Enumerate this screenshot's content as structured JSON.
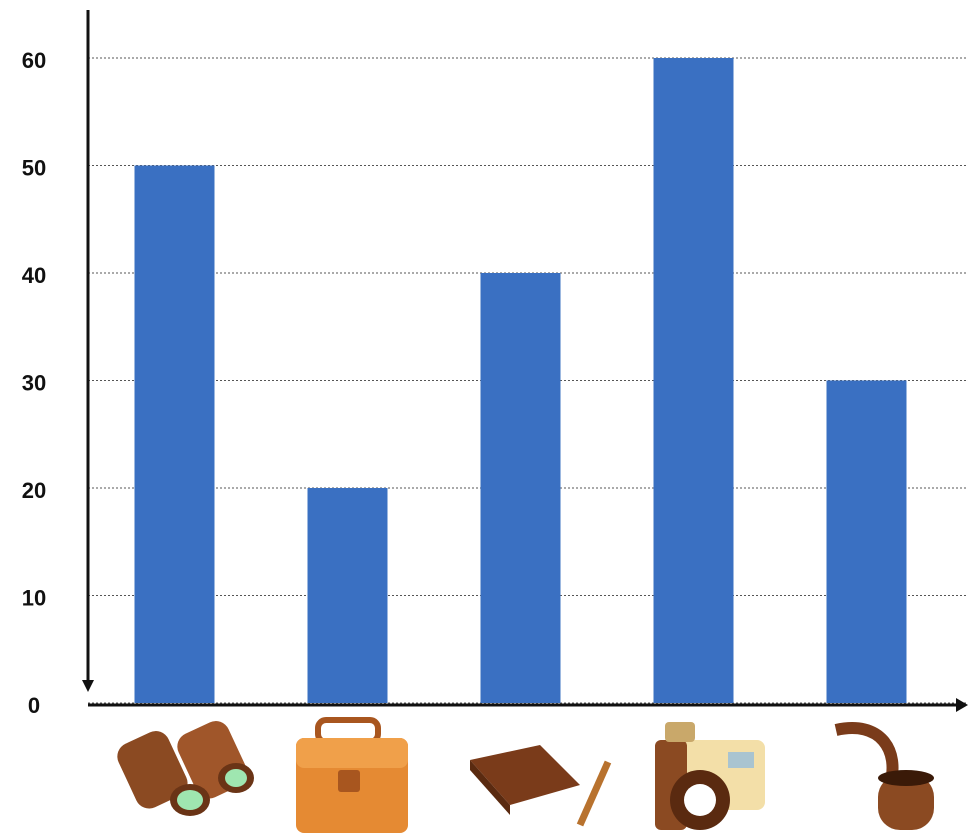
{
  "chart_data": {
    "type": "bar",
    "categories": [
      null,
      null,
      null,
      null,
      null
    ],
    "values": [
      50,
      20,
      40,
      60,
      30
    ],
    "color": "#3a70c2",
    "ylim": [
      0,
      64
    ],
    "yticks": [
      0,
      10,
      20,
      30,
      40,
      50,
      60
    ],
    "grid": true
  }
}
